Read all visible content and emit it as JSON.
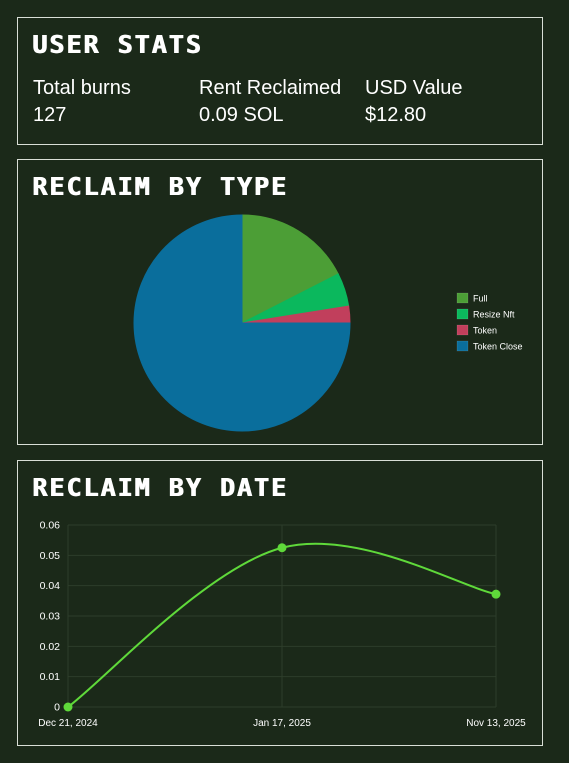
{
  "user_stats": {
    "title": "USER STATS",
    "items": [
      {
        "label": "Total burns",
        "value": "127"
      },
      {
        "label": "Rent Reclaimed",
        "value": "0.09 SOL"
      },
      {
        "label": "USD Value",
        "value": "$12.80"
      }
    ]
  },
  "reclaim_by_type": {
    "title": "RECLAIM BY TYPE"
  },
  "reclaim_by_date": {
    "title": "RECLAIM BY DATE"
  },
  "chart_data": [
    {
      "type": "pie",
      "title": "",
      "legend_position": "right",
      "slices": [
        {
          "label": "Full",
          "value": 17.5,
          "color": "#4c9e36"
        },
        {
          "label": "Resize Nft",
          "value": 5.0,
          "color": "#0bb85d"
        },
        {
          "label": "Token",
          "value": 2.5,
          "color": "#c13f5c"
        },
        {
          "label": "Token Close",
          "value": 75.0,
          "color": "#0a6e9c"
        }
      ]
    },
    {
      "type": "line",
      "title": "",
      "xlabel": "",
      "ylabel": "",
      "x": [
        "Dec 21, 2024",
        "Jan 17, 2025",
        "Nov 13, 2025"
      ],
      "series": [
        {
          "values": [
            0,
            0.0525,
            0.0372
          ],
          "color": "#5fd93a"
        }
      ],
      "ylim": [
        0,
        0.06
      ],
      "yticks": [
        "0",
        "0.01",
        "0.02",
        "0.03",
        "0.04",
        "0.05",
        "0.06"
      ],
      "grid": true
    }
  ]
}
